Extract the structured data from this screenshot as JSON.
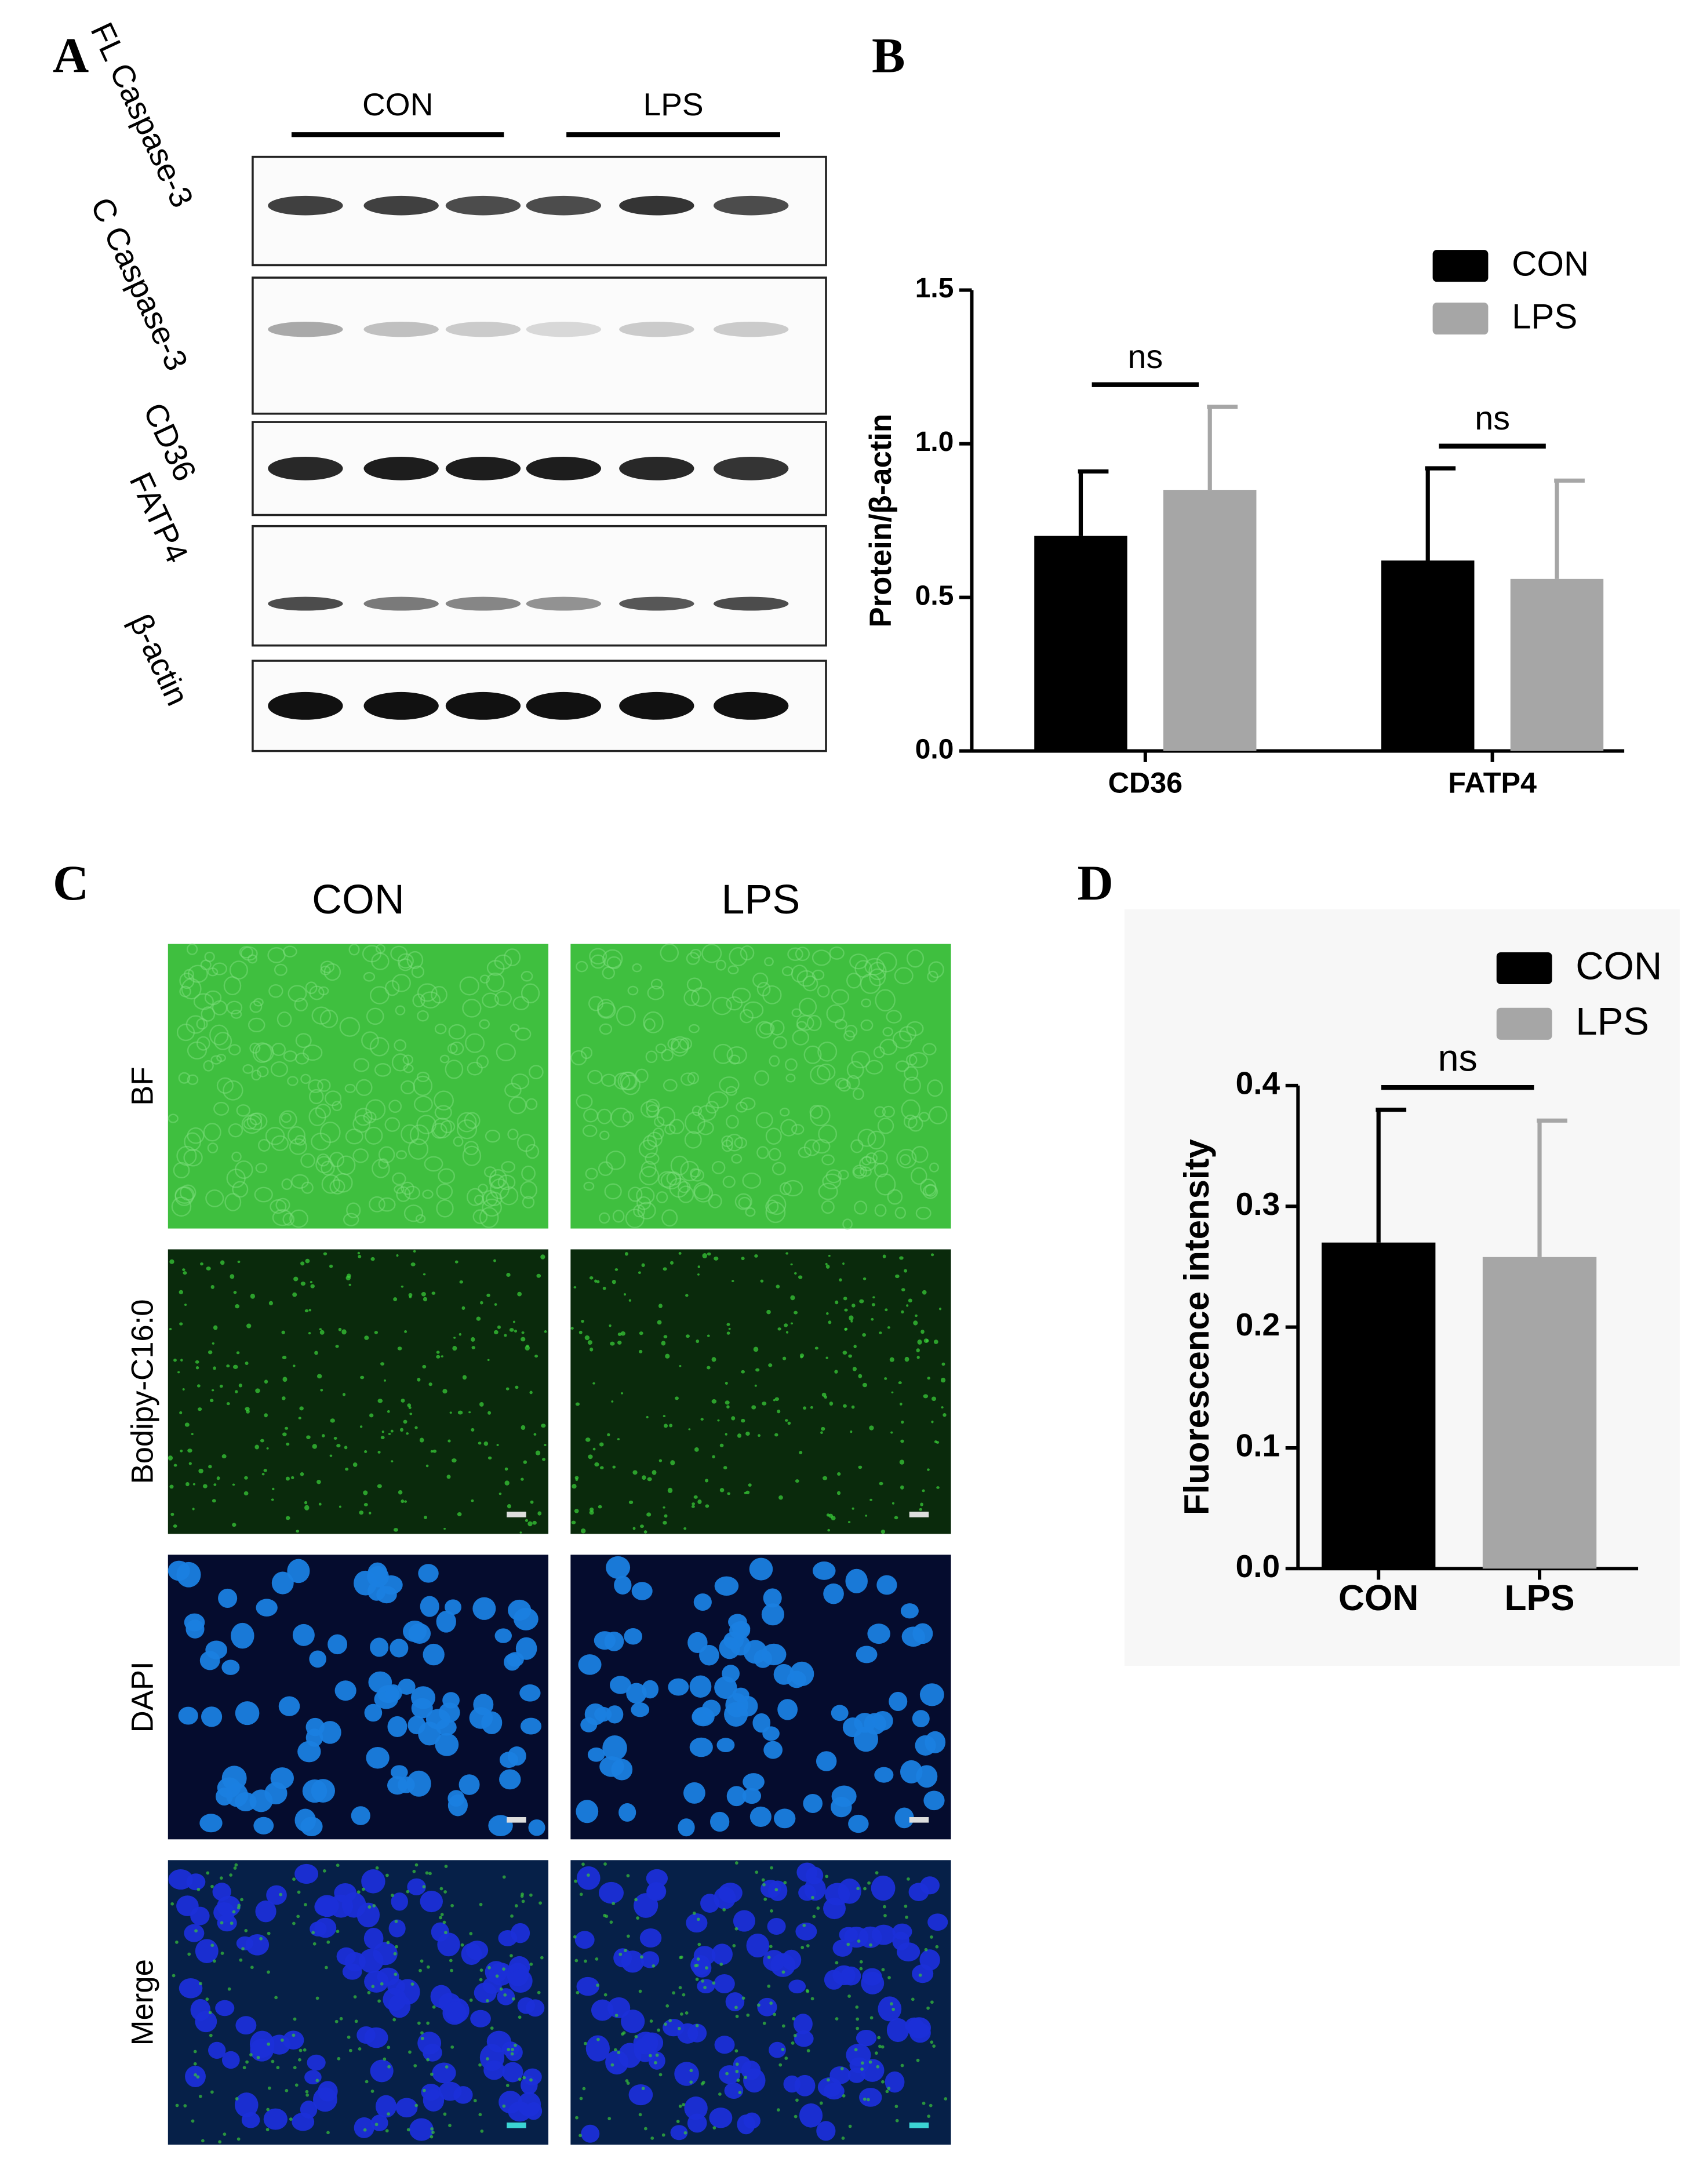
{
  "panels": {
    "A": {
      "label": "A",
      "groups": [
        "CON",
        "LPS"
      ],
      "bands": [
        "FL Caspase-3",
        "C Caspase-3",
        "CD36",
        "FATP4",
        "β-actin"
      ]
    },
    "C": {
      "label": "C",
      "columns": [
        "CON",
        "LPS"
      ],
      "rows": [
        "BF",
        "Bodipy-C16:0",
        "DAPI",
        "Merge"
      ]
    }
  },
  "chart_data": [
    {
      "type": "bar",
      "panel_label": "B",
      "ylabel": "Protein/β-actin",
      "categories": [
        "CD36",
        "FATP4"
      ],
      "series": [
        {
          "name": "CON",
          "color": "#000000",
          "values": [
            0.7,
            0.62
          ],
          "errors": [
            0.21,
            0.3
          ]
        },
        {
          "name": "LPS",
          "color": "#a6a6a6",
          "values": [
            0.85,
            0.56
          ],
          "errors": [
            0.27,
            0.32
          ]
        }
      ],
      "ylim": [
        0,
        1.5
      ],
      "yticks": [
        {
          "value": 0,
          "label": "0.0"
        },
        0.5,
        {
          "value": 1,
          "label": "1.0"
        },
        1.5
      ],
      "annotations": [
        "ns",
        "ns"
      ],
      "legend": "top-right"
    },
    {
      "type": "bar",
      "panel_label": "D",
      "ylabel": "Fluorescence intensity",
      "categories": [
        "CON",
        "LPS"
      ],
      "series": [
        {
          "name": "CON",
          "color": "#000000",
          "values": [
            0.27,
            null
          ],
          "errors": [
            0.11,
            null
          ]
        },
        {
          "name": "LPS",
          "color": "#a6a6a6",
          "values": [
            null,
            0.258
          ],
          "errors": [
            null,
            0.113
          ]
        }
      ],
      "ylim": [
        0,
        0.4
      ],
      "yticks": [
        {
          "value": 0,
          "label": "0.0"
        },
        0.1,
        0.2,
        0.3,
        0.4
      ],
      "annotations": [
        "ns"
      ],
      "legend": "top-right"
    }
  ]
}
